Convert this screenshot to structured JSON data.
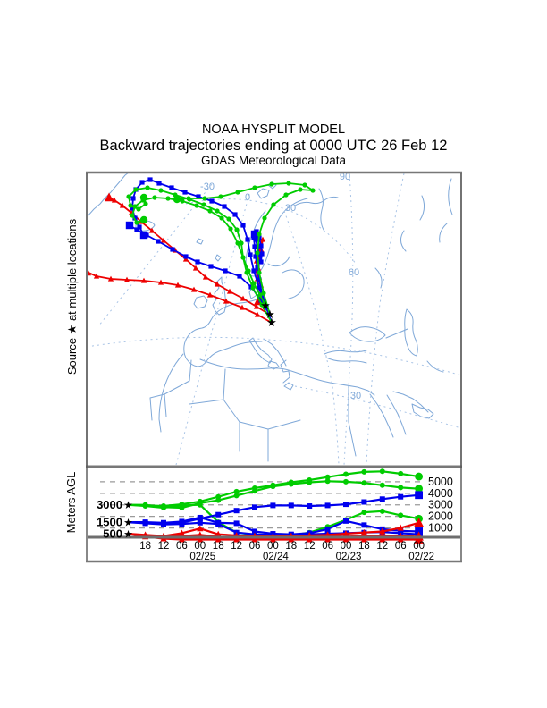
{
  "header": {
    "line1": "NOAA HYSPLIT MODEL",
    "line2": "Backward trajectories ending at 0000 UTC 26 Feb 12",
    "line3": "GDAS Meteorological Data"
  },
  "side_labels": {
    "map": "Source ★  at multiple locations",
    "height_panel": "Meters AGL"
  },
  "chart_data": [
    {
      "type": "line",
      "name": "trajectory-map",
      "projection_note": "polar-stereographic Europe/N-Africa view",
      "graticule_labels": [
        {
          "text": "90",
          "x": 386,
          "y": 201
        },
        {
          "text": "-30",
          "x": 232,
          "y": 212
        },
        {
          "text": "0",
          "x": 277,
          "y": 224
        },
        {
          "text": "30",
          "x": 325,
          "y": 236
        },
        {
          "text": "60",
          "x": 396,
          "y": 308
        },
        {
          "text": "30",
          "x": 398,
          "y": 446
        }
      ],
      "sources": [
        [
          297,
          342
        ],
        [
          302,
          352
        ],
        [
          304,
          361
        ]
      ],
      "series": [
        {
          "name": "traj-500m-west",
          "color": "#ee0000",
          "marker": "triangle",
          "points": [
            [
              304,
              361
            ],
            [
              288,
              352
            ],
            [
              271,
              344
            ],
            [
              253,
              337
            ],
            [
              235,
              330
            ],
            [
              217,
              324
            ],
            [
              199,
              319
            ],
            [
              180,
              316
            ],
            [
              161,
              314
            ],
            [
              142,
              313
            ],
            [
              124,
              312
            ],
            [
              108,
              309
            ],
            [
              97,
              304
            ]
          ]
        },
        {
          "name": "traj-500m-nw",
          "color": "#ee0000",
          "marker": "triangle",
          "points": [
            [
              302,
              352
            ],
            [
              287,
              343
            ],
            [
              272,
              334
            ],
            [
              257,
              326
            ],
            [
              243,
              318
            ],
            [
              230,
              310
            ],
            [
              219,
              300
            ],
            [
              208,
              290
            ],
            [
              196,
              280
            ],
            [
              183,
              269
            ],
            [
              170,
              258
            ],
            [
              158,
              248
            ],
            [
              147,
              238
            ],
            [
              137,
              230
            ],
            [
              128,
              224
            ],
            [
              122,
              221
            ]
          ]
        },
        {
          "name": "traj-500m-coast",
          "color": "#ee0000",
          "marker": "triangle",
          "points": [
            [
              297,
              342
            ],
            [
              293,
              332
            ],
            [
              290,
              322
            ],
            [
              288,
              312
            ],
            [
              287,
              302
            ],
            [
              287,
              292
            ],
            [
              288,
              283
            ],
            [
              291,
              275
            ],
            [
              294,
              268
            ],
            [
              292,
              279
            ],
            [
              290,
              290
            ],
            [
              289,
              300
            ],
            [
              290,
              310
            ],
            [
              292,
              319
            ],
            [
              291,
              329
            ],
            [
              289,
              337
            ]
          ]
        },
        {
          "name": "traj-1500m-loop",
          "color": "#0000ee",
          "marker": "square",
          "points": [
            [
              297,
              342
            ],
            [
              290,
              322
            ],
            [
              284,
              303
            ],
            [
              280,
              285
            ],
            [
              277,
              268
            ],
            [
              272,
              252
            ],
            [
              263,
              240
            ],
            [
              251,
              231
            ],
            [
              237,
              225
            ],
            [
              222,
              220
            ],
            [
              207,
              215
            ],
            [
              192,
              210
            ],
            [
              178,
              205
            ],
            [
              168,
              201
            ],
            [
              159,
              204
            ],
            [
              152,
              212
            ],
            [
              149,
              222
            ],
            [
              148,
              233
            ],
            [
              151,
              244
            ],
            [
              156,
              254
            ],
            [
              161,
              263
            ]
          ]
        },
        {
          "name": "traj-1500m-diag",
          "color": "#0000ee",
          "marker": "square",
          "points": [
            [
              302,
              352
            ],
            [
              292,
              336
            ],
            [
              281,
              321
            ],
            [
              268,
              309
            ],
            [
              252,
              303
            ],
            [
              236,
              298
            ],
            [
              221,
              293
            ],
            [
              208,
              287
            ],
            [
              193,
              279
            ],
            [
              177,
              270
            ],
            [
              164,
              263
            ],
            [
              153,
              257
            ],
            [
              145,
              252
            ]
          ]
        },
        {
          "name": "traj-1500m-cluster",
          "color": "#0000ee",
          "marker": "square",
          "points": [
            [
              304,
              361
            ],
            [
              298,
              344
            ],
            [
              293,
              328
            ],
            [
              290,
              313
            ],
            [
              288,
              299
            ],
            [
              286,
              287
            ],
            [
              285,
              276
            ],
            [
              284,
              266
            ],
            [
              287,
              259
            ],
            [
              290,
              266
            ],
            [
              292,
              275
            ],
            [
              293,
              284
            ],
            [
              292,
              293
            ],
            [
              290,
              285
            ],
            [
              288,
              276
            ],
            [
              286,
              268
            ],
            [
              285,
              262
            ]
          ]
        },
        {
          "name": "traj-3000m-loop1",
          "color": "#00cc00",
          "marker": "circle",
          "points": [
            [
              304,
              361
            ],
            [
              293,
              341
            ],
            [
              283,
              322
            ],
            [
              276,
              305
            ],
            [
              272,
              288
            ],
            [
              270,
              272
            ],
            [
              265,
              257
            ],
            [
              256,
              245
            ],
            [
              243,
              236
            ],
            [
              228,
              229
            ],
            [
              212,
              223
            ],
            [
              196,
              218
            ],
            [
              180,
              213
            ],
            [
              165,
              210
            ],
            [
              152,
              212
            ],
            [
              144,
              220
            ],
            [
              146,
              230
            ],
            [
              155,
              234
            ],
            [
              163,
              228
            ],
            [
              161,
              221
            ]
          ]
        },
        {
          "name": "traj-3000m-arc",
          "color": "#00cc00",
          "marker": "circle",
          "points": [
            [
              302,
              352
            ],
            [
              295,
              328
            ],
            [
              290,
              305
            ],
            [
              288,
              283
            ],
            [
              290,
              262
            ],
            [
              296,
              244
            ],
            [
              306,
              229
            ],
            [
              320,
              218
            ],
            [
              336,
              212
            ],
            [
              350,
              213
            ],
            [
              341,
              207
            ],
            [
              323,
              205
            ],
            [
              304,
              206
            ],
            [
              285,
              210
            ],
            [
              266,
              215
            ],
            [
              247,
              220
            ],
            [
              229,
              222
            ],
            [
              211,
              222
            ],
            [
              198,
              223
            ]
          ]
        },
        {
          "name": "traj-3000m-loop2",
          "color": "#00cc00",
          "marker": "circle",
          "points": [
            [
              297,
              342
            ],
            [
              291,
              330
            ],
            [
              284,
              317
            ],
            [
              278,
              303
            ],
            [
              272,
              288
            ],
            [
              266,
              272
            ],
            [
              258,
              256
            ],
            [
              248,
              244
            ],
            [
              235,
              236
            ],
            [
              220,
              230
            ],
            [
              204,
              225
            ],
            [
              188,
              222
            ],
            [
              173,
              221
            ],
            [
              160,
              224
            ],
            [
              151,
              231
            ],
            [
              148,
              241
            ],
            [
              153,
              249
            ],
            [
              161,
              246
            ]
          ]
        }
      ]
    },
    {
      "type": "line",
      "name": "height-profile",
      "ylabel": "Meters AGL",
      "ylim": [
        0,
        6200
      ],
      "grid": true,
      "y_gridlines": [
        1000,
        2000,
        3000,
        4000,
        5000
      ],
      "right_axis_labels": [
        "5000",
        "4000",
        "3000",
        "2000",
        "1000"
      ],
      "start_heights": [
        {
          "label": "3000",
          "value": 3000
        },
        {
          "label": "1500",
          "value": 1500
        },
        {
          "label": "500",
          "value": 500
        }
      ],
      "x_tick_labels": [
        "18",
        "12",
        "06",
        "00",
        "18",
        "12",
        "06",
        "00",
        "18",
        "12",
        "06",
        "00",
        "18",
        "12",
        "06",
        "00"
      ],
      "date_labels": [
        {
          "text": "02/25",
          "tick_index": 4
        },
        {
          "text": "02/24",
          "tick_index": 8
        },
        {
          "text": "02/23",
          "tick_index": 12
        },
        {
          "text": "02/22",
          "tick_index": 16
        }
      ],
      "series": [
        {
          "name": "height-3000m-a",
          "color": "#00cc00",
          "marker": "circle",
          "values": [
            3000,
            2950,
            2900,
            3050,
            3300,
            3700,
            4150,
            4450,
            4700,
            4950,
            5150,
            5400,
            5650,
            5850,
            5900,
            5700,
            5450
          ]
        },
        {
          "name": "height-3000m-b",
          "color": "#00cc00",
          "marker": "circle",
          "values": [
            3000,
            3000,
            2800,
            2750,
            3150,
            3400,
            3800,
            4200,
            4600,
            4800,
            4950,
            5050,
            5000,
            4900,
            4700,
            4500,
            4400
          ]
        },
        {
          "name": "height-3000m-c",
          "color": "#00cc00",
          "marker": "circle",
          "values": [
            3000,
            2900,
            2750,
            2950,
            3000,
            1500,
            600,
            400,
            350,
            350,
            600,
            1100,
            1700,
            2350,
            2450,
            2100,
            1800
          ]
        },
        {
          "name": "height-1500m-a",
          "color": "#0000ee",
          "marker": "square",
          "values": [
            1500,
            1450,
            1350,
            1450,
            1800,
            2150,
            2500,
            2800,
            2950,
            2950,
            2900,
            2950,
            3050,
            3250,
            3500,
            3700,
            3850
          ]
        },
        {
          "name": "height-1500m-b",
          "color": "#0000ee",
          "marker": "square",
          "values": [
            1500,
            1500,
            1450,
            1550,
            1900,
            1450,
            1400,
            700,
            500,
            450,
            550,
            900,
            1600,
            1250,
            900,
            750,
            700
          ]
        },
        {
          "name": "height-1500m-c",
          "color": "#0000ee",
          "marker": "square",
          "values": [
            1500,
            1400,
            1300,
            1350,
            1450,
            1350,
            600,
            450,
            400,
            400,
            450,
            500,
            550,
            600,
            650,
            550,
            450
          ]
        },
        {
          "name": "height-500m-a",
          "color": "#ee0000",
          "marker": "triangle",
          "values": [
            500,
            400,
            300,
            550,
            950,
            450,
            350,
            300,
            250,
            300,
            350,
            400,
            500,
            600,
            700,
            1000,
            1450
          ]
        },
        {
          "name": "height-500m-b",
          "color": "#ee0000",
          "marker": "triangle",
          "values": [
            500,
            350,
            250,
            300,
            400,
            250,
            200,
            200,
            250,
            200,
            250,
            300,
            250,
            300,
            350,
            300,
            250
          ]
        },
        {
          "name": "height-500m-c",
          "color": "#ee0000",
          "marker": "triangle",
          "values": [
            500,
            250,
            80,
            0,
            0,
            0,
            0,
            0,
            0,
            0,
            0,
            0,
            0,
            0,
            0,
            0,
            0
          ]
        }
      ]
    }
  ]
}
